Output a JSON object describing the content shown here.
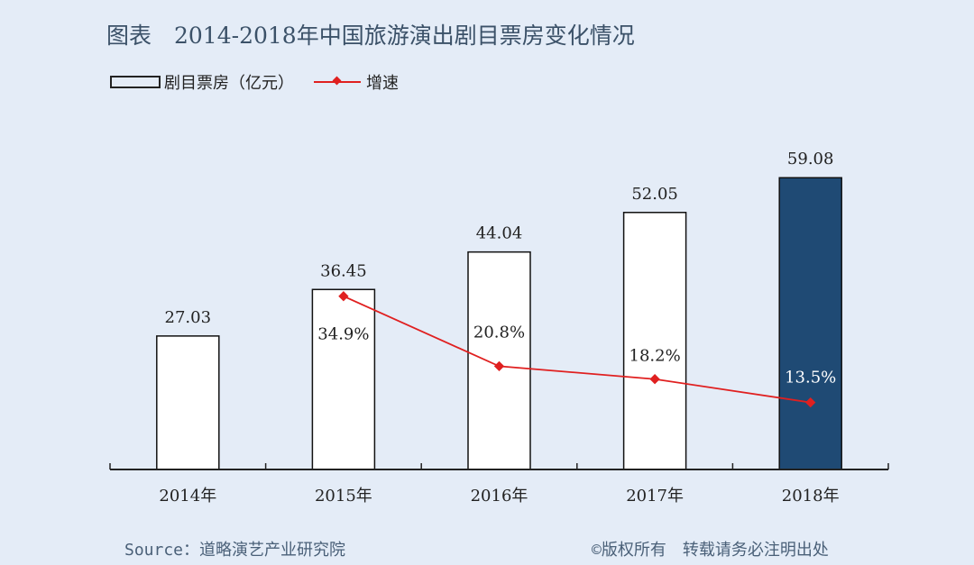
{
  "title": "图表　2014-2018年中国旅游演出剧目票房变化情况",
  "legend": {
    "bar": "剧目票房（亿元）",
    "line": "增速"
  },
  "source": "Source：道略演艺产业研究院",
  "copyright": "©版权所有　转载请务必注明出处",
  "colors": {
    "background": "#e4ecf7",
    "bar_fill": "#ffffff",
    "highlight_bar": "#1f4a74",
    "line": "#e02020",
    "title": "#3b5168"
  },
  "chart_data": {
    "type": "bar+line",
    "title": "图表　2014-2018年中国旅游演出剧目票房变化情况",
    "categories": [
      "2014年",
      "2015年",
      "2016年",
      "2017年",
      "2018年"
    ],
    "series": [
      {
        "name": "剧目票房（亿元）",
        "type": "bar",
        "values": [
          27.03,
          36.45,
          44.04,
          52.05,
          59.08
        ],
        "labels": [
          "27.03",
          "36.45",
          "44.04",
          "52.05",
          "59.08"
        ],
        "highlight_index": 4
      },
      {
        "name": "增速",
        "type": "line",
        "values": [
          null,
          34.9,
          20.8,
          18.2,
          13.5
        ],
        "labels": [
          "",
          "34.9%",
          "20.8%",
          "18.2%",
          "13.5%"
        ]
      }
    ],
    "grid": false,
    "legend_position": "top-left"
  }
}
